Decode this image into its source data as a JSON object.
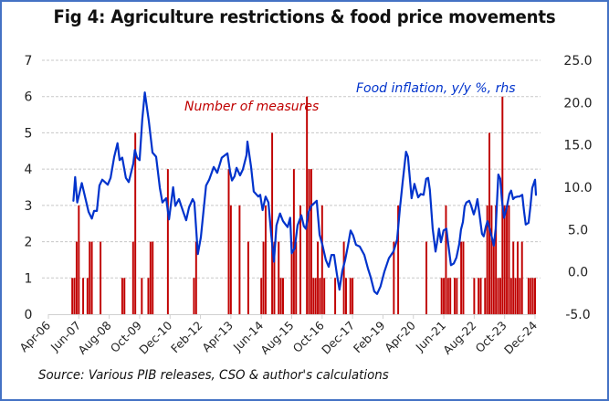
{
  "chart_data": {
    "type": "bar+line",
    "title": "Fig 4: Agriculture restrictions & food price movements",
    "source": "Source: Various PIB releases, CSO & author's calculations",
    "x_axis": {
      "unit": "months since Apr-06",
      "range": [
        0,
        224
      ],
      "tick_step": 14,
      "tick_labels": [
        "Apr-06",
        "Jun-07",
        "Aug-08",
        "Oct-09",
        "Dec-10",
        "Feb-12",
        "Apr-13",
        "Jun-14",
        "Aug-15",
        "Oct-16",
        "Dec-17",
        "Feb-19",
        "Apr-20",
        "Jun-21",
        "Aug-22",
        "Oct-23",
        "Dec-24"
      ]
    },
    "y_left": {
      "range": [
        0,
        7
      ],
      "ticks": [
        "0",
        "1",
        "2",
        "3",
        "4",
        "5",
        "6",
        "7"
      ],
      "label": "Number of measures"
    },
    "y_right": {
      "range": [
        -5,
        25
      ],
      "ticks": [
        "-5.0",
        "0.0",
        "5.0",
        "10.0",
        "15.0",
        "20.0",
        "25.0"
      ],
      "label": "Food inflation, y/y %, rhs"
    },
    "grid": "horizontal-dashed",
    "series": [
      {
        "name": "Number of measures",
        "type": "bar",
        "axis": "left",
        "color": "#C00000",
        "points": [
          [
            11,
            1
          ],
          [
            12,
            1
          ],
          [
            13,
            2
          ],
          [
            14,
            3
          ],
          [
            16,
            1
          ],
          [
            18,
            1
          ],
          [
            19,
            2
          ],
          [
            20,
            2
          ],
          [
            24,
            2
          ],
          [
            34,
            1
          ],
          [
            35,
            1
          ],
          [
            39,
            2
          ],
          [
            40,
            5
          ],
          [
            43,
            1
          ],
          [
            46,
            1
          ],
          [
            47,
            2
          ],
          [
            48,
            2
          ],
          [
            55,
            4
          ],
          [
            67,
            1
          ],
          [
            68,
            2
          ],
          [
            83,
            4
          ],
          [
            84,
            3
          ],
          [
            88,
            3
          ],
          [
            92,
            2
          ],
          [
            98,
            1
          ],
          [
            99,
            2
          ],
          [
            100,
            3
          ],
          [
            103,
            5
          ],
          [
            104,
            2
          ],
          [
            106,
            2
          ],
          [
            107,
            1
          ],
          [
            108,
            1
          ],
          [
            112,
            2
          ],
          [
            113,
            4
          ],
          [
            114,
            2
          ],
          [
            116,
            3
          ],
          [
            119,
            6
          ],
          [
            120,
            4
          ],
          [
            121,
            4
          ],
          [
            122,
            1
          ],
          [
            123,
            1
          ],
          [
            124,
            2
          ],
          [
            125,
            1
          ],
          [
            126,
            3
          ],
          [
            127,
            1
          ],
          [
            132,
            1
          ],
          [
            136,
            2
          ],
          [
            137,
            1
          ],
          [
            139,
            1
          ],
          [
            140,
            1
          ],
          [
            159,
            2
          ],
          [
            161,
            3
          ],
          [
            174,
            2
          ],
          [
            181,
            1
          ],
          [
            182,
            1
          ],
          [
            183,
            3
          ],
          [
            184,
            1
          ],
          [
            185,
            1
          ],
          [
            187,
            1
          ],
          [
            188,
            1
          ],
          [
            190,
            2
          ],
          [
            191,
            2
          ],
          [
            196,
            1
          ],
          [
            198,
            1
          ],
          [
            199,
            1
          ],
          [
            201,
            1
          ],
          [
            202,
            3
          ],
          [
            203,
            5
          ],
          [
            204,
            3
          ],
          [
            205,
            2
          ],
          [
            206,
            3
          ],
          [
            207,
            1
          ],
          [
            208,
            1
          ],
          [
            209,
            6
          ],
          [
            210,
            3
          ],
          [
            211,
            3
          ],
          [
            212,
            3
          ],
          [
            213,
            1
          ],
          [
            214,
            2
          ],
          [
            215,
            1
          ],
          [
            216,
            2
          ],
          [
            217,
            1
          ],
          [
            218,
            2
          ],
          [
            221,
            1
          ],
          [
            222,
            1
          ],
          [
            223,
            1
          ],
          [
            224,
            1
          ]
        ]
      },
      {
        "name": "Food inflation, y/y %, rhs",
        "type": "line",
        "axis": "right",
        "color": "#0033CC",
        "points": [
          [
            11.5,
            8.4
          ],
          [
            12.3,
            11.2
          ],
          [
            13.3,
            8.2
          ],
          [
            15.4,
            10.5
          ],
          [
            18.5,
            7.1
          ],
          [
            20,
            6.3
          ],
          [
            21,
            7.2
          ],
          [
            22.3,
            7.2
          ],
          [
            23.5,
            10.2
          ],
          [
            24.8,
            10.9
          ],
          [
            27.3,
            10.3
          ],
          [
            28.6,
            11.1
          ],
          [
            30.3,
            13.6
          ],
          [
            31.8,
            15.2
          ],
          [
            32.8,
            13.2
          ],
          [
            34,
            13.5
          ],
          [
            35.7,
            11.1
          ],
          [
            37,
            10.6
          ],
          [
            39.1,
            12.8
          ],
          [
            39.8,
            14.4
          ],
          [
            40.8,
            13.5
          ],
          [
            42,
            13.2
          ],
          [
            43.2,
            18
          ],
          [
            44.4,
            21.2
          ],
          [
            46.2,
            17.9
          ],
          [
            47.9,
            14.1
          ],
          [
            49.6,
            13.6
          ],
          [
            51.3,
            9.9
          ],
          [
            52.5,
            8.2
          ],
          [
            54.2,
            8.7
          ],
          [
            55.5,
            6.2
          ],
          [
            57.4,
            10
          ],
          [
            58.4,
            7.8
          ],
          [
            60.1,
            8.6
          ],
          [
            62.2,
            7
          ],
          [
            63.4,
            6.1
          ],
          [
            64.7,
            7.6
          ],
          [
            66.4,
            8.6
          ],
          [
            67.2,
            8.2
          ],
          [
            68.8,
            2.1
          ],
          [
            70.2,
            4.1
          ],
          [
            72.6,
            10.2
          ],
          [
            74,
            10.9
          ],
          [
            76.1,
            12.4
          ],
          [
            77.7,
            11.7
          ],
          [
            79.8,
            13.5
          ],
          [
            82.4,
            14
          ],
          [
            83.6,
            11.9
          ],
          [
            84.5,
            10.8
          ],
          [
            85.7,
            11.3
          ],
          [
            86.6,
            12.3
          ],
          [
            88.2,
            11.4
          ],
          [
            89.5,
            12.1
          ],
          [
            91.2,
            13.8
          ],
          [
            91.6,
            15.4
          ],
          [
            93.3,
            12.4
          ],
          [
            94.5,
            9.5
          ],
          [
            96.6,
            8.9
          ],
          [
            97.5,
            9.1
          ],
          [
            98.6,
            7.3
          ],
          [
            100,
            8.9
          ],
          [
            101.3,
            8.2
          ],
          [
            102.5,
            4.6
          ],
          [
            103.8,
            1.2
          ],
          [
            105,
            5.5
          ],
          [
            106.6,
            6.9
          ],
          [
            108,
            6
          ],
          [
            109.2,
            5.6
          ],
          [
            110.1,
            5.3
          ],
          [
            111.3,
            6.4
          ],
          [
            112,
            2.2
          ],
          [
            113.4,
            2.8
          ],
          [
            114.7,
            5.5
          ],
          [
            116.4,
            6.7
          ],
          [
            117.6,
            5.4
          ],
          [
            118.5,
            5.1
          ],
          [
            119.7,
            7
          ],
          [
            121,
            7.8
          ],
          [
            123.5,
            8.4
          ],
          [
            124.8,
            4.4
          ],
          [
            126.1,
            3.2
          ],
          [
            127.7,
            1.4
          ],
          [
            129,
            0.6
          ],
          [
            130.3,
            2
          ],
          [
            131.5,
            2
          ],
          [
            132.8,
            -0.3
          ],
          [
            134,
            -2.1
          ],
          [
            135.3,
            0.1
          ],
          [
            136.6,
            1.4
          ],
          [
            137.8,
            3
          ],
          [
            139.1,
            4.9
          ],
          [
            140.3,
            4.3
          ],
          [
            141.6,
            3.2
          ],
          [
            143.3,
            3
          ],
          [
            145.4,
            2
          ],
          [
            147.1,
            0.4
          ],
          [
            148.3,
            -0.6
          ],
          [
            150,
            -2.3
          ],
          [
            151.3,
            -2.6
          ],
          [
            152.9,
            -1.7
          ],
          [
            154.6,
            0
          ],
          [
            156.7,
            1.6
          ],
          [
            158.8,
            2.4
          ],
          [
            160.5,
            3.8
          ],
          [
            161.8,
            7.5
          ],
          [
            163,
            10.5
          ],
          [
            164.6,
            14.2
          ],
          [
            165.5,
            13.6
          ],
          [
            167.2,
            8.7
          ],
          [
            168.5,
            10.4
          ],
          [
            170.2,
            8.8
          ],
          [
            171.4,
            9.2
          ],
          [
            172.7,
            9.1
          ],
          [
            173.9,
            11
          ],
          [
            174.8,
            11.1
          ],
          [
            175.6,
            9.7
          ],
          [
            176.9,
            5.1
          ],
          [
            178.2,
            2.4
          ],
          [
            179,
            3.6
          ],
          [
            179.8,
            5.1
          ],
          [
            180.7,
            3.5
          ],
          [
            181.9,
            4.9
          ],
          [
            183.2,
            5.1
          ],
          [
            184,
            3.4
          ],
          [
            185.3,
            0.8
          ],
          [
            186.6,
            1
          ],
          [
            187.8,
            1.7
          ],
          [
            189.1,
            3.3
          ],
          [
            189.9,
            5
          ],
          [
            190.8,
            5.9
          ],
          [
            191.6,
            7.7
          ],
          [
            192.4,
            8.2
          ],
          [
            193.7,
            8.4
          ],
          [
            194.5,
            7.9
          ],
          [
            195.8,
            6.8
          ],
          [
            196.6,
            7.5
          ],
          [
            197.5,
            8.6
          ],
          [
            198.3,
            7.1
          ],
          [
            199.6,
            4.5
          ],
          [
            200.4,
            4.2
          ],
          [
            201.3,
            5.3
          ],
          [
            202.1,
            6
          ],
          [
            202.9,
            5.3
          ],
          [
            204.2,
            4
          ],
          [
            205,
            3.1
          ],
          [
            205.9,
            5.1
          ],
          [
            207.1,
            11.5
          ],
          [
            208,
            11
          ],
          [
            208.8,
            8.4
          ],
          [
            209.7,
            6.4
          ],
          [
            210.9,
            7.5
          ],
          [
            212.2,
            9.2
          ],
          [
            213,
            9.6
          ],
          [
            213.9,
            8.6
          ],
          [
            214.7,
            8.8
          ],
          [
            216,
            8.9
          ],
          [
            216.8,
            8.9
          ],
          [
            218.1,
            9.1
          ],
          [
            218.9,
            7.2
          ],
          [
            219.7,
            5.6
          ],
          [
            221,
            5.8
          ],
          [
            221.8,
            7.6
          ],
          [
            222.7,
            9.9
          ],
          [
            224,
            10.9
          ],
          [
            224.4,
            9.1
          ]
        ]
      }
    ],
    "annotations": [
      {
        "text": "Number of measures",
        "color": "#C00000"
      },
      {
        "text": "Food inflation, y/y %, rhs",
        "color": "#0033CC"
      }
    ]
  }
}
